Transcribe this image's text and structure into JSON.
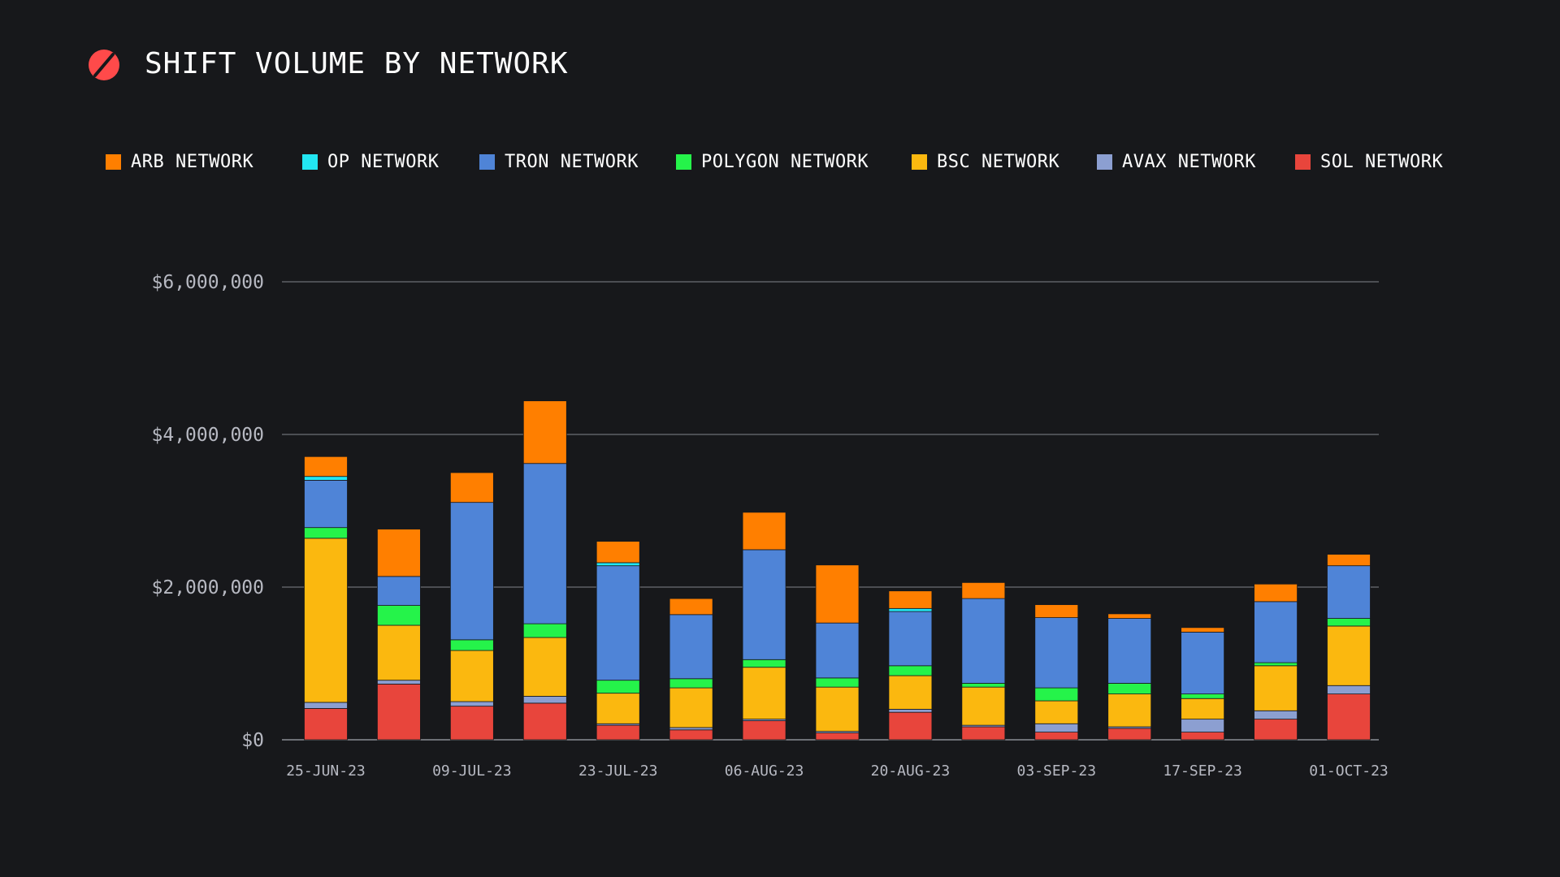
{
  "header": {
    "title": "SHIFT VOLUME BY NETWORK",
    "logo_icon": "slash-circle-icon",
    "logo_color": "#ff4a4a"
  },
  "colors": {
    "background": "#17181b",
    "gridline": "#6b6e75",
    "text": "#ffffff",
    "tick_text": "#b7b9c2"
  },
  "chart_data": {
    "type": "bar",
    "stacked": true,
    "title": "SHIFT VOLUME BY NETWORK",
    "xlabel": "",
    "ylabel": "",
    "ylim": [
      0,
      6000000
    ],
    "y_ticks": [
      0,
      2000000,
      4000000,
      6000000
    ],
    "y_tick_labels": [
      "$0",
      "$2,000,000",
      "$4,000,000",
      "$6,000,000"
    ],
    "grid": true,
    "legend_position": "top",
    "categories": [
      "25-JUN-23",
      "02-JUL-23",
      "09-JUL-23",
      "16-JUL-23",
      "23-JUL-23",
      "30-JUL-23",
      "06-AUG-23",
      "13-AUG-23",
      "20-AUG-23",
      "27-AUG-23",
      "03-SEP-23",
      "10-SEP-23",
      "17-SEP-23",
      "24-SEP-23",
      "01-OCT-23"
    ],
    "x_tick_labels": [
      "25-JUN-23",
      "",
      "09-JUL-23",
      "",
      "23-JUL-23",
      "",
      "06-AUG-23",
      "",
      "20-AUG-23",
      "",
      "03-SEP-23",
      "",
      "17-SEP-23",
      "",
      "01-OCT-23"
    ],
    "series": [
      {
        "name": "SOL NETWORK",
        "color": "#e8453c",
        "values": [
          410000,
          730000,
          440000,
          480000,
          190000,
          130000,
          250000,
          90000,
          360000,
          170000,
          100000,
          150000,
          100000,
          270000,
          600000
        ]
      },
      {
        "name": "AVAX NETWORK",
        "color": "#8c9fd1",
        "values": [
          80000,
          50000,
          60000,
          90000,
          20000,
          30000,
          20000,
          20000,
          40000,
          20000,
          110000,
          20000,
          170000,
          110000,
          110000
        ]
      },
      {
        "name": "BSC NETWORK",
        "color": "#fbb80f",
        "values": [
          2150000,
          720000,
          670000,
          770000,
          400000,
          520000,
          680000,
          580000,
          440000,
          500000,
          300000,
          430000,
          270000,
          590000,
          780000
        ]
      },
      {
        "name": "POLYGON NETWORK",
        "color": "#25f34a",
        "values": [
          140000,
          260000,
          140000,
          180000,
          170000,
          120000,
          100000,
          120000,
          130000,
          50000,
          170000,
          140000,
          60000,
          40000,
          100000
        ]
      },
      {
        "name": "TRON NETWORK",
        "color": "#4f84d7",
        "values": [
          620000,
          380000,
          1800000,
          2100000,
          1500000,
          840000,
          1440000,
          720000,
          710000,
          1110000,
          920000,
          850000,
          810000,
          800000,
          690000
        ]
      },
      {
        "name": "OP NETWORK",
        "color": "#22e6f2",
        "values": [
          50000,
          0,
          0,
          0,
          40000,
          0,
          0,
          0,
          40000,
          0,
          0,
          0,
          0,
          0,
          0
        ]
      },
      {
        "name": "ARB NETWORK",
        "color": "#ff7f00",
        "values": [
          260000,
          620000,
          390000,
          820000,
          280000,
          210000,
          490000,
          760000,
          230000,
          210000,
          170000,
          60000,
          60000,
          230000,
          150000
        ]
      }
    ]
  },
  "legend": {
    "items": [
      {
        "label": "ARB NETWORK",
        "color": "#ff7f00"
      },
      {
        "label": "OP NETWORK",
        "color": "#22e6f2"
      },
      {
        "label": "TRON NETWORK",
        "color": "#4f84d7"
      },
      {
        "label": "POLYGON NETWORK",
        "color": "#25f34a"
      },
      {
        "label": "BSC NETWORK",
        "color": "#fbb80f"
      },
      {
        "label": "AVAX NETWORK",
        "color": "#8c9fd1"
      },
      {
        "label": "SOL NETWORK",
        "color": "#e8453c"
      }
    ]
  }
}
